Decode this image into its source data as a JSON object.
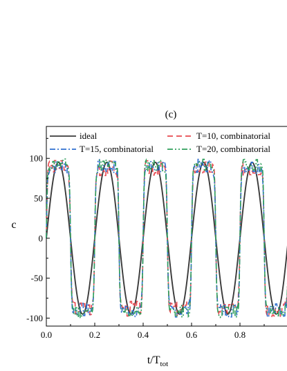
{
  "chart_data": {
    "type": "line",
    "panel_label": "(c)",
    "xlabel": "t/T",
    "xlabel_sub": "tot",
    "ylabel": "c",
    "xlim": [
      0,
      1.0
    ],
    "ylim": [
      -110,
      140
    ],
    "x_ticks": [
      0.0,
      0.2,
      0.4,
      0.6,
      0.8
    ],
    "x_tick_labels": [
      "0.0",
      "0.2",
      "0.4",
      "0.6",
      "0.8"
    ],
    "y_ticks": [
      -100,
      -50,
      0,
      50,
      100
    ],
    "y_tick_labels": [
      "-100",
      "-50",
      "0",
      "50",
      "100"
    ],
    "period": 0.2,
    "amplitude": 95,
    "legend": {
      "placement": "top",
      "columns": 2
    },
    "series": [
      {
        "name": "ideal",
        "color": "#3a3a3a",
        "dash": "solid",
        "style": "sine",
        "amplitude": 95
      },
      {
        "name": "T=10, combinatorial",
        "color": "#e8474d",
        "dash": "dash",
        "style": "square",
        "amplitude": 88,
        "noise": 10,
        "seed": 3
      },
      {
        "name": "T=15, combinatorial",
        "color": "#2f6fcf",
        "dash": "dashdot",
        "style": "square",
        "amplitude": 90,
        "noise": 9,
        "seed": 7
      },
      {
        "name": "T=20, combinatorial",
        "color": "#2e9e5a",
        "dash": "dashdotdot",
        "style": "square",
        "amplitude": 92,
        "noise": 8,
        "seed": 11
      }
    ]
  }
}
